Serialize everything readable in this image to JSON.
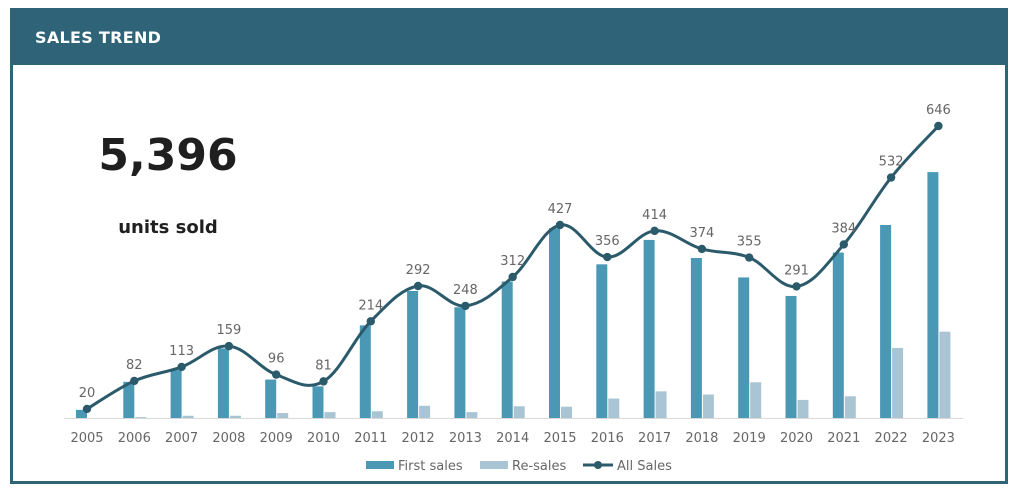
{
  "header": {
    "title": "SALES TREND"
  },
  "kpi": {
    "value": "5,396",
    "label": "units sold"
  },
  "colors": {
    "header": "#2e6378",
    "first_sales": "#4b98b5",
    "re_sales": "#a9c5d4",
    "all_sales": "#2b5a6b",
    "axis_text": "#666666"
  },
  "chart_data": {
    "type": "bar",
    "categories": [
      "2005",
      "2006",
      "2007",
      "2008",
      "2009",
      "2010",
      "2011",
      "2012",
      "2013",
      "2014",
      "2015",
      "2016",
      "2017",
      "2018",
      "2019",
      "2020",
      "2021",
      "2022",
      "2023"
    ],
    "series": [
      {
        "name": "First sales",
        "type": "bar",
        "values": [
          18,
          80,
          106,
          154,
          85,
          70,
          205,
          281,
          245,
          302,
          420,
          340,
          394,
          354,
          311,
          270,
          366,
          427,
          544
        ]
      },
      {
        "name": "Re-sales",
        "type": "bar",
        "values": [
          0,
          2,
          5,
          5,
          11,
          13,
          15,
          27,
          13,
          26,
          25,
          43,
          59,
          52,
          79,
          40,
          48,
          155,
          191
        ]
      },
      {
        "name": "All Sales",
        "type": "line",
        "values": [
          20,
          82,
          113,
          159,
          96,
          81,
          214,
          292,
          248,
          312,
          427,
          356,
          414,
          374,
          355,
          291,
          384,
          532,
          646
        ]
      }
    ],
    "data_labels": [
      "20",
      "82",
      "113",
      "159",
      "96",
      "81",
      "214",
      "292",
      "248",
      "312",
      "427",
      "356",
      "414",
      "374",
      "355",
      "291",
      "384",
      "532",
      "646"
    ],
    "ylim": [
      0,
      646
    ],
    "grid": false,
    "legend_position": "bottom"
  }
}
